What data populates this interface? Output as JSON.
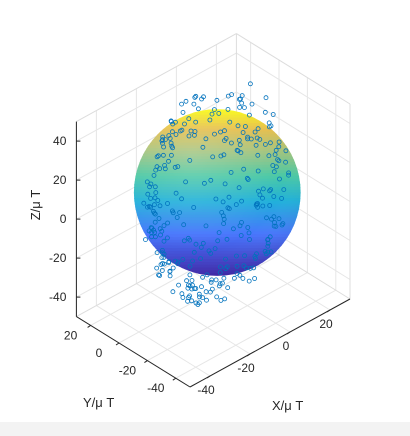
{
  "chart_data": {
    "type": "scatter3d",
    "title": "",
    "xlabel": "X/μ T",
    "ylabel": "Y/μ T",
    "zlabel": "Z/μ T",
    "xlim": [
      -50,
      30
    ],
    "ylim": [
      -50,
      30
    ],
    "zlim": [
      -50,
      50
    ],
    "xticks": [
      -40,
      -20,
      0,
      20
    ],
    "yticks": [
      -40,
      -20,
      0,
      20
    ],
    "zticks": [
      -40,
      -20,
      0,
      20,
      40
    ],
    "xtick_labels": [
      "-40",
      "-20",
      "0",
      "20"
    ],
    "ytick_labels": [
      "-40",
      "-20",
      "0",
      "20"
    ],
    "ztick_labels": [
      "-40",
      "-20",
      "0",
      "20",
      "40"
    ],
    "grid": true,
    "sphere": {
      "center": [
        -3,
        -3,
        2
      ],
      "radius": 45,
      "colormap": "parula"
    },
    "marker_color": "#0072bd",
    "marker": "open-circle",
    "n_points": 460
  }
}
